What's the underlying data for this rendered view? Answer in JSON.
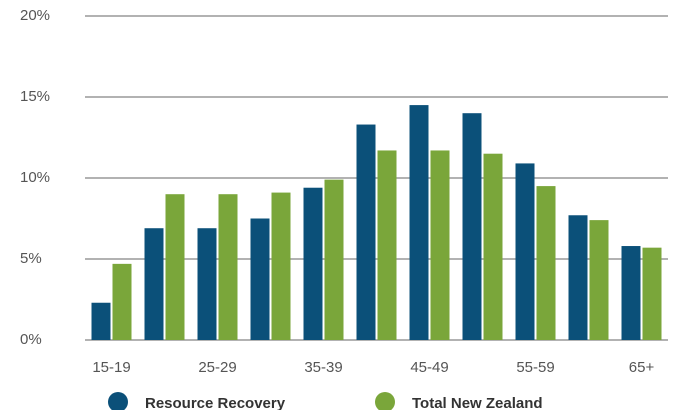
{
  "chart_data": {
    "type": "bar",
    "categories": [
      "15-19",
      null,
      "25-29",
      null,
      "35-39",
      null,
      "45-49",
      null,
      "55-59",
      null,
      "65+"
    ],
    "series": [
      {
        "name": "Resource Recovery",
        "color": "#0b5079",
        "values": [
          2.3,
          6.9,
          6.9,
          7.5,
          9.4,
          13.3,
          14.5,
          14.0,
          10.9,
          7.7,
          5.8
        ]
      },
      {
        "name": "Total New Zealand",
        "color": "#7aa63a",
        "values": [
          4.7,
          9.0,
          9.0,
          9.1,
          9.9,
          11.7,
          11.7,
          11.5,
          9.5,
          7.4,
          5.7
        ]
      }
    ],
    "ylim": [
      0,
      20
    ],
    "yticks": [
      {
        "value": 0,
        "label": "0%"
      },
      {
        "value": 5,
        "label": "5%"
      },
      {
        "value": 10,
        "label": "10%"
      },
      {
        "value": 15,
        "label": "15%"
      },
      {
        "value": 20,
        "label": "20%"
      }
    ],
    "grid": true
  }
}
